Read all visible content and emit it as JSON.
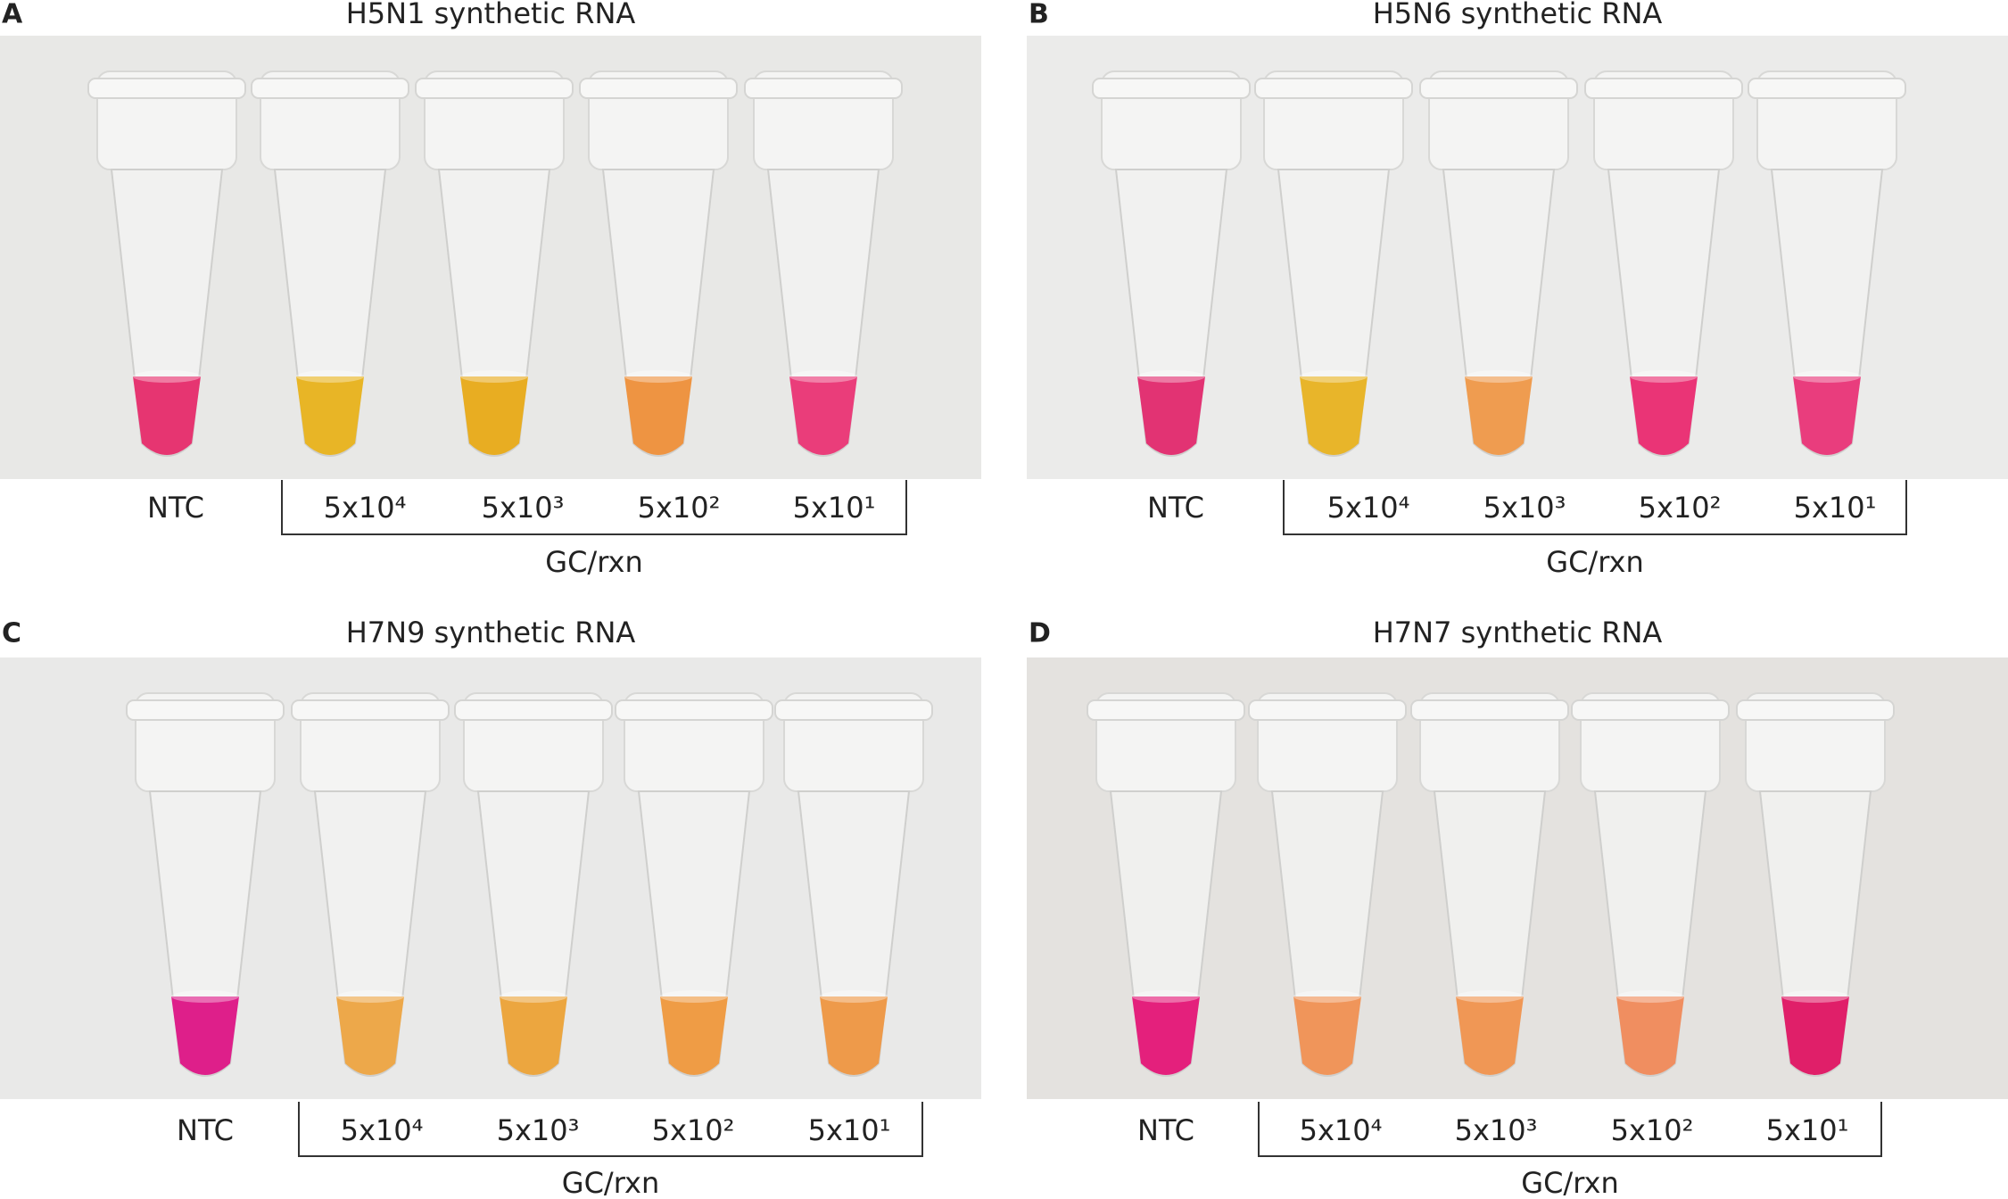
{
  "panels": [
    {
      "letter": "A",
      "title": "H5N1 synthetic RNA",
      "labels": [
        "NTC",
        "5x10⁴",
        "5x10³",
        "5x10²",
        "5x10¹"
      ],
      "unit": "GC/rxn"
    },
    {
      "letter": "B",
      "title": "H5N6 synthetic RNA",
      "labels": [
        "NTC",
        "5x10⁴",
        "5x10³",
        "5x10²",
        "5x10¹"
      ],
      "unit": "GC/rxn"
    },
    {
      "letter": "C",
      "title": "H7N9 synthetic RNA",
      "labels": [
        "NTC",
        "5x10⁴",
        "5x10³",
        "5x10²",
        "5x10¹"
      ],
      "unit": "GC/rxn"
    },
    {
      "letter": "D",
      "title": "H7N7 synthetic RNA",
      "labels": [
        "NTC",
        "5x10⁴",
        "5x10³",
        "5x10²",
        "5x10¹"
      ],
      "unit": "GC/rxn"
    }
  ]
}
